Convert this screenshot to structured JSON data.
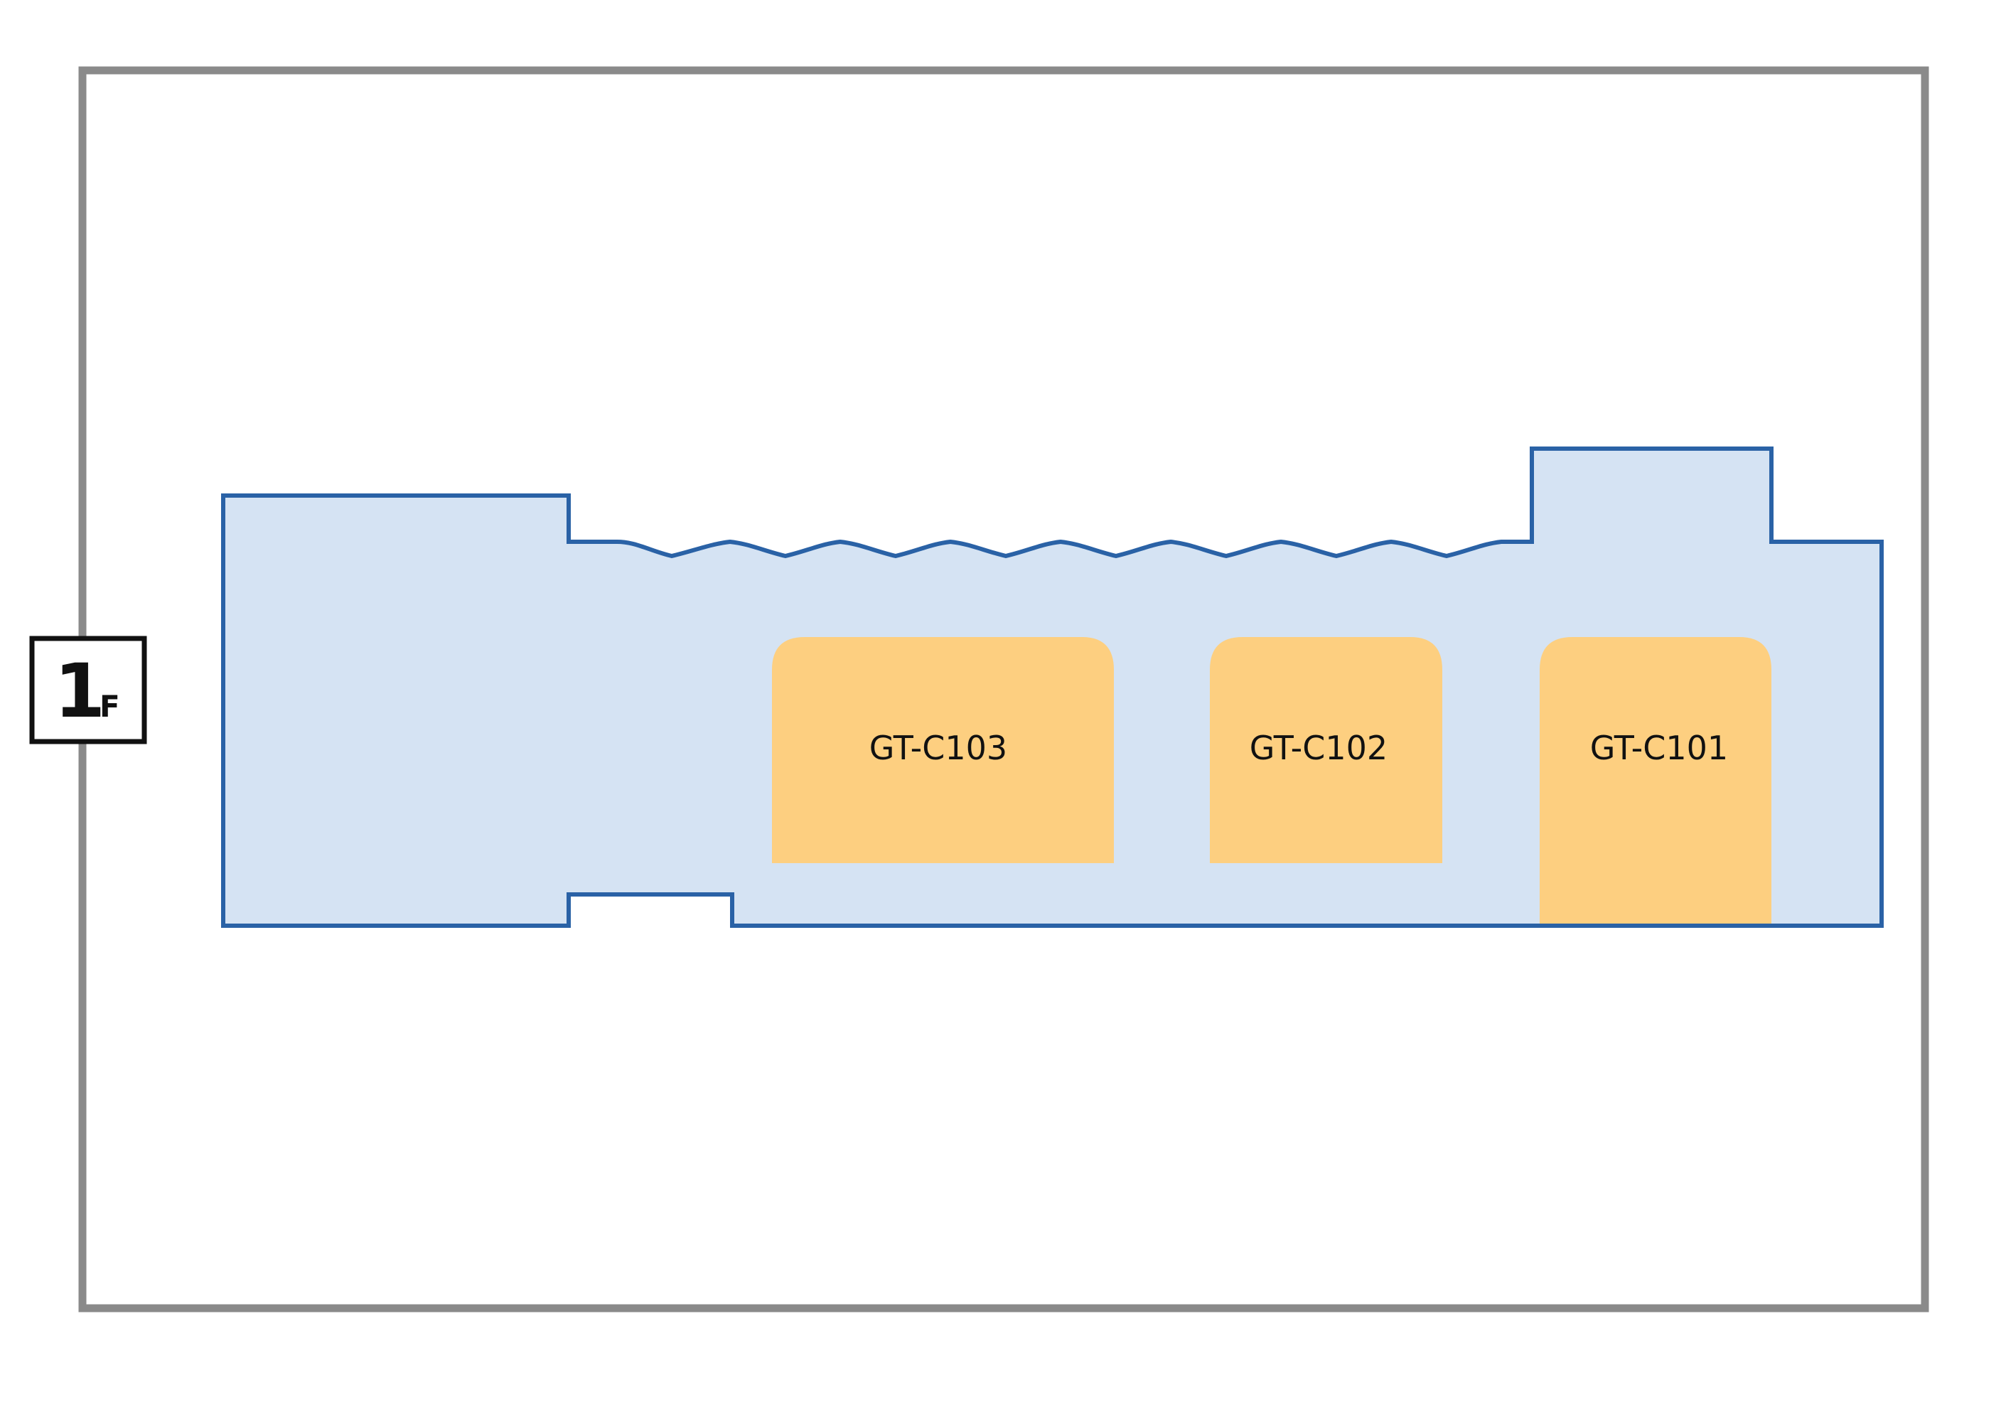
{
  "floor": {
    "number": "1",
    "suffix": "F"
  },
  "colors": {
    "frame": "#8a8a8a",
    "building_fill": "#d5e3f3",
    "building_outline": "#2a62a6",
    "room_fill": "#fdcf80",
    "text": "#111111"
  },
  "rooms": [
    {
      "id": "c103",
      "label": "GT-C103"
    },
    {
      "id": "c102",
      "label": "GT-C102"
    },
    {
      "id": "c101",
      "label": "GT-C101"
    }
  ]
}
